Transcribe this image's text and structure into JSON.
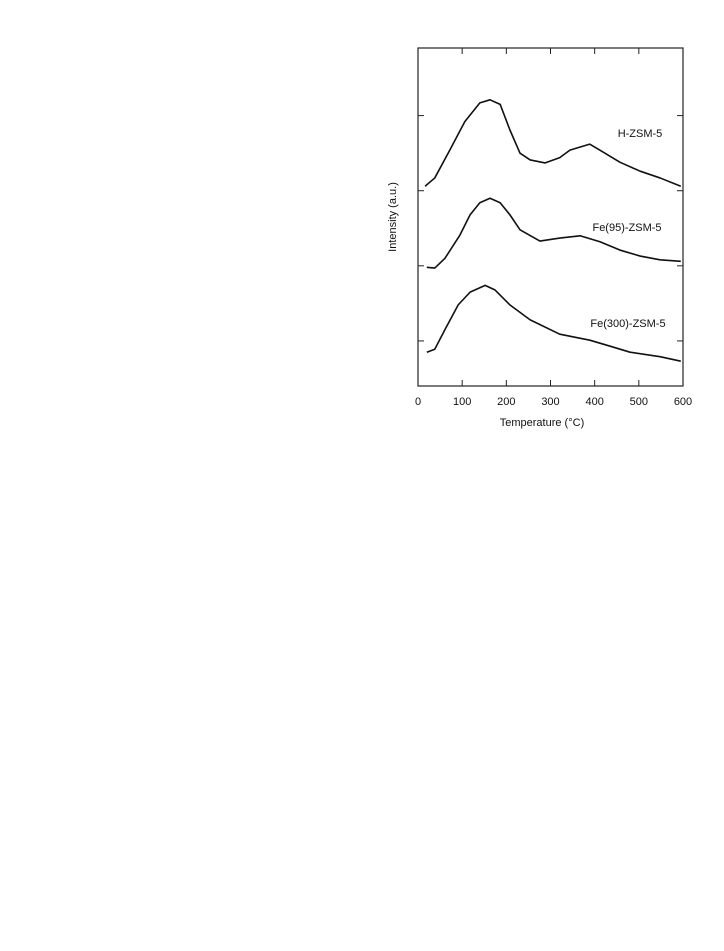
{
  "chart_data": {
    "type": "line",
    "xlabel": "Temperature (°C)",
    "ylabel": "Intensity (a.u.)",
    "xlim": [
      0,
      600
    ],
    "xticks": [
      0,
      100,
      200,
      300,
      400,
      500,
      600
    ],
    "ylim": [
      0,
      4.5
    ],
    "yticks": [
      0.6,
      1.6,
      2.6,
      3.6
    ],
    "series": [
      {
        "name": "H-ZSM-5",
        "color": "#111111",
        "x": [
          16,
          38,
          72,
          106,
          140,
          163,
          186,
          208,
          231,
          254,
          288,
          321,
          344,
          389,
          412,
          457,
          503,
          548,
          595
        ],
        "values": [
          2.66,
          2.77,
          3.14,
          3.52,
          3.77,
          3.81,
          3.75,
          3.41,
          3.1,
          3.01,
          2.97,
          3.04,
          3.14,
          3.22,
          3.14,
          2.98,
          2.86,
          2.77,
          2.66
        ]
      },
      {
        "name": "Fe(95)-ZSM-5",
        "color": "#111111",
        "x": [
          20,
          38,
          61,
          95,
          118,
          140,
          163,
          186,
          208,
          231,
          276,
          321,
          367,
          412,
          457,
          503,
          548,
          595
        ],
        "values": [
          1.58,
          1.57,
          1.7,
          2.01,
          2.28,
          2.44,
          2.5,
          2.44,
          2.28,
          2.08,
          1.93,
          1.97,
          2.0,
          1.92,
          1.81,
          1.73,
          1.68,
          1.66
        ]
      },
      {
        "name": "Fe(300)-ZSM-5",
        "color": "#111111",
        "x": [
          20,
          38,
          61,
          91,
          118,
          152,
          174,
          208,
          254,
          321,
          389,
          435,
          480,
          548,
          595
        ],
        "values": [
          0.45,
          0.49,
          0.75,
          1.08,
          1.25,
          1.34,
          1.28,
          1.08,
          0.88,
          0.69,
          0.61,
          0.53,
          0.45,
          0.39,
          0.33
        ]
      }
    ]
  }
}
